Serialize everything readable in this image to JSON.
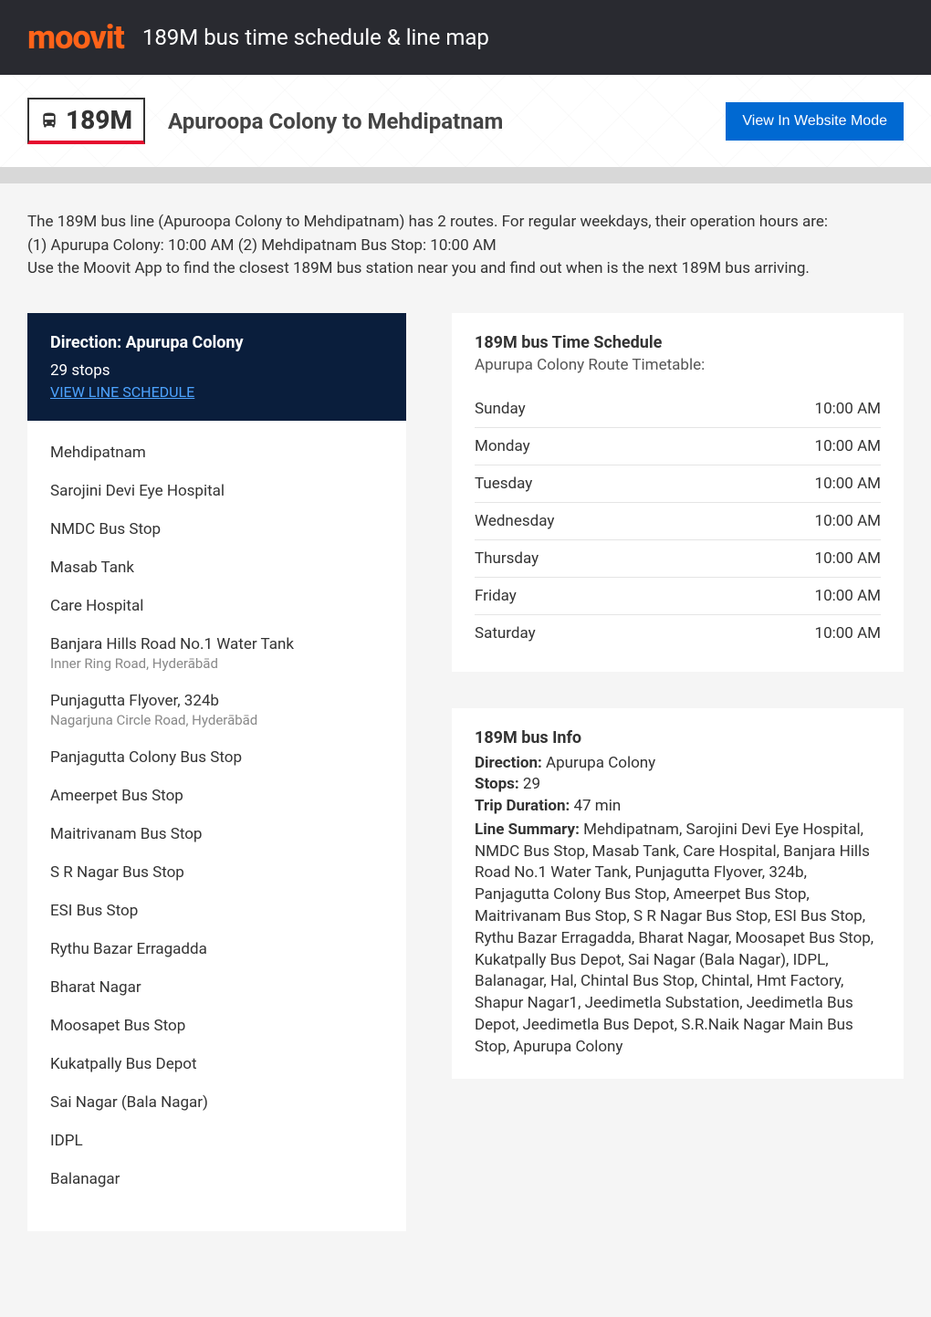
{
  "header": {
    "logo": "moovit",
    "title": "189M bus time schedule & line map"
  },
  "subheader": {
    "route_number": "189M",
    "route_title": "Apuroopa Colony to Mehdipatnam",
    "website_button": "View In Website Mode"
  },
  "intro": {
    "line1": "The 189M bus line (Apuroopa Colony to Mehdipatnam) has 2 routes. For regular weekdays, their operation hours are:",
    "line2": "(1) Apurupa Colony: 10:00 AM (2) Mehdipatnam Bus Stop: 10:00 AM",
    "line3": "Use the Moovit App to find the closest 189M bus station near you and find out when is the next 189M bus arriving."
  },
  "direction_card": {
    "label": "Direction: Apurupa Colony",
    "stops_count": "29 stops",
    "view_link": "VIEW LINE SCHEDULE"
  },
  "stops": [
    {
      "name": "Mehdipatnam"
    },
    {
      "name": "Sarojini Devi Eye Hospital"
    },
    {
      "name": "NMDC Bus Stop"
    },
    {
      "name": "Masab Tank"
    },
    {
      "name": "Care Hospital"
    },
    {
      "name": "Banjara Hills Road No.1 Water Tank",
      "sub": "Inner Ring Road, Hyderābād"
    },
    {
      "name": "Punjagutta Flyover, 324b",
      "sub": "Nagarjuna Circle Road, Hyderābād"
    },
    {
      "name": "Panjagutta Colony Bus Stop"
    },
    {
      "name": "Ameerpet Bus Stop"
    },
    {
      "name": "Maitrivanam Bus Stop"
    },
    {
      "name": "S R Nagar Bus Stop"
    },
    {
      "name": "ESI Bus Stop"
    },
    {
      "name": "Rythu Bazar Erragadda"
    },
    {
      "name": "Bharat Nagar"
    },
    {
      "name": "Moosapet Bus Stop"
    },
    {
      "name": "Kukatpally Bus Depot"
    },
    {
      "name": "Sai Nagar (Bala Nagar)"
    },
    {
      "name": "IDPL"
    },
    {
      "name": "Balanagar"
    }
  ],
  "schedule": {
    "title": "189M bus Time Schedule",
    "subtitle": "Apurupa Colony Route Timetable:",
    "rows": [
      {
        "day": "Sunday",
        "time": "10:00 AM"
      },
      {
        "day": "Monday",
        "time": "10:00 AM"
      },
      {
        "day": "Tuesday",
        "time": "10:00 AM"
      },
      {
        "day": "Wednesday",
        "time": "10:00 AM"
      },
      {
        "day": "Thursday",
        "time": "10:00 AM"
      },
      {
        "day": "Friday",
        "time": "10:00 AM"
      },
      {
        "day": "Saturday",
        "time": "10:00 AM"
      }
    ]
  },
  "info": {
    "title": "189M bus Info",
    "direction_label": "Direction:",
    "direction_value": "Apurupa Colony",
    "stops_label": "Stops:",
    "stops_value": "29",
    "duration_label": "Trip Duration:",
    "duration_value": "47 min",
    "summary_label": "Line Summary:",
    "summary_value": "Mehdipatnam, Sarojini Devi Eye Hospital, NMDC Bus Stop, Masab Tank, Care Hospital, Banjara Hills Road No.1 Water Tank, Punjagutta Flyover, 324b, Panjagutta Colony Bus Stop, Ameerpet Bus Stop, Maitrivanam Bus Stop, S R Nagar Bus Stop, ESI Bus Stop, Rythu Bazar Erragadda, Bharat Nagar, Moosapet Bus Stop, Kukatpally Bus Depot, Sai Nagar (Bala Nagar), IDPL, Balanagar, Hal, Chintal Bus Stop, Chintal, Hmt Factory, Shapur Nagar1, Jeedimetla Substation, Jeedimetla Bus Depot, Jeedimetla Bus Depot, S.R.Naik Nagar Main Bus Stop, Apurupa Colony"
  },
  "colors": {
    "header_bg": "#292a30",
    "logo": "#ff6319",
    "accent_red": "#e6092f",
    "button_blue": "#0069d2",
    "card_navy": "#0a1e3c",
    "link_blue": "#4da3ff"
  }
}
